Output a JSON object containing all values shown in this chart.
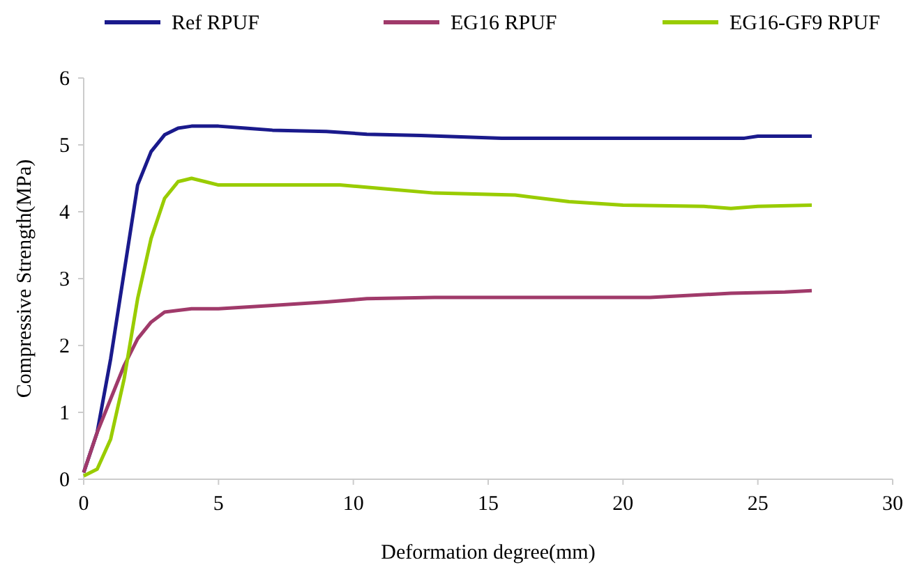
{
  "chart_data": {
    "type": "line",
    "xlabel": "Deformation degree(mm)",
    "ylabel": "Compressive Strength(MPa)",
    "xlim": [
      0,
      30
    ],
    "xticks": [
      0,
      5,
      10,
      15,
      20,
      25,
      30
    ],
    "ylim": [
      0,
      6
    ],
    "yticks": [
      0,
      1,
      2,
      3,
      4,
      5,
      6
    ],
    "grid": false,
    "legend": "top",
    "marker": "none",
    "line_style": "solid",
    "series": [
      {
        "name": "Ref RPUF",
        "color": "#1a1a8c",
        "x": [
          0,
          0.5,
          1,
          1.5,
          2,
          2.5,
          3,
          3.5,
          4,
          5,
          6,
          7,
          9,
          10.5,
          12.5,
          15.5,
          20,
          24.5,
          25,
          27
        ],
        "values": [
          0.1,
          0.7,
          1.8,
          3.1,
          4.4,
          4.9,
          5.15,
          5.25,
          5.28,
          5.28,
          5.25,
          5.22,
          5.2,
          5.16,
          5.14,
          5.1,
          5.1,
          5.1,
          5.13,
          5.13
        ]
      },
      {
        "name": "EG16 RPUF",
        "color": "#a03a6a",
        "x": [
          0,
          0.5,
          1,
          1.5,
          2,
          2.5,
          3,
          4,
          5,
          7,
          9,
          10.5,
          13,
          21,
          24,
          26,
          27
        ],
        "values": [
          0.1,
          0.7,
          1.2,
          1.7,
          2.1,
          2.35,
          2.5,
          2.55,
          2.55,
          2.6,
          2.65,
          2.7,
          2.72,
          2.72,
          2.78,
          2.8,
          2.82
        ]
      },
      {
        "name": "EG16-GF9 RPUF",
        "color": "#99cc00",
        "x": [
          0,
          0.5,
          1,
          1.5,
          2,
          2.5,
          3,
          3.5,
          4,
          4.5,
          5,
          9.5,
          11,
          13,
          16,
          18,
          20,
          23,
          24,
          25,
          27
        ],
        "values": [
          0.05,
          0.15,
          0.6,
          1.5,
          2.7,
          3.6,
          4.2,
          4.45,
          4.5,
          4.45,
          4.4,
          4.4,
          4.35,
          4.28,
          4.25,
          4.15,
          4.1,
          4.08,
          4.05,
          4.08,
          4.1
        ]
      }
    ]
  }
}
